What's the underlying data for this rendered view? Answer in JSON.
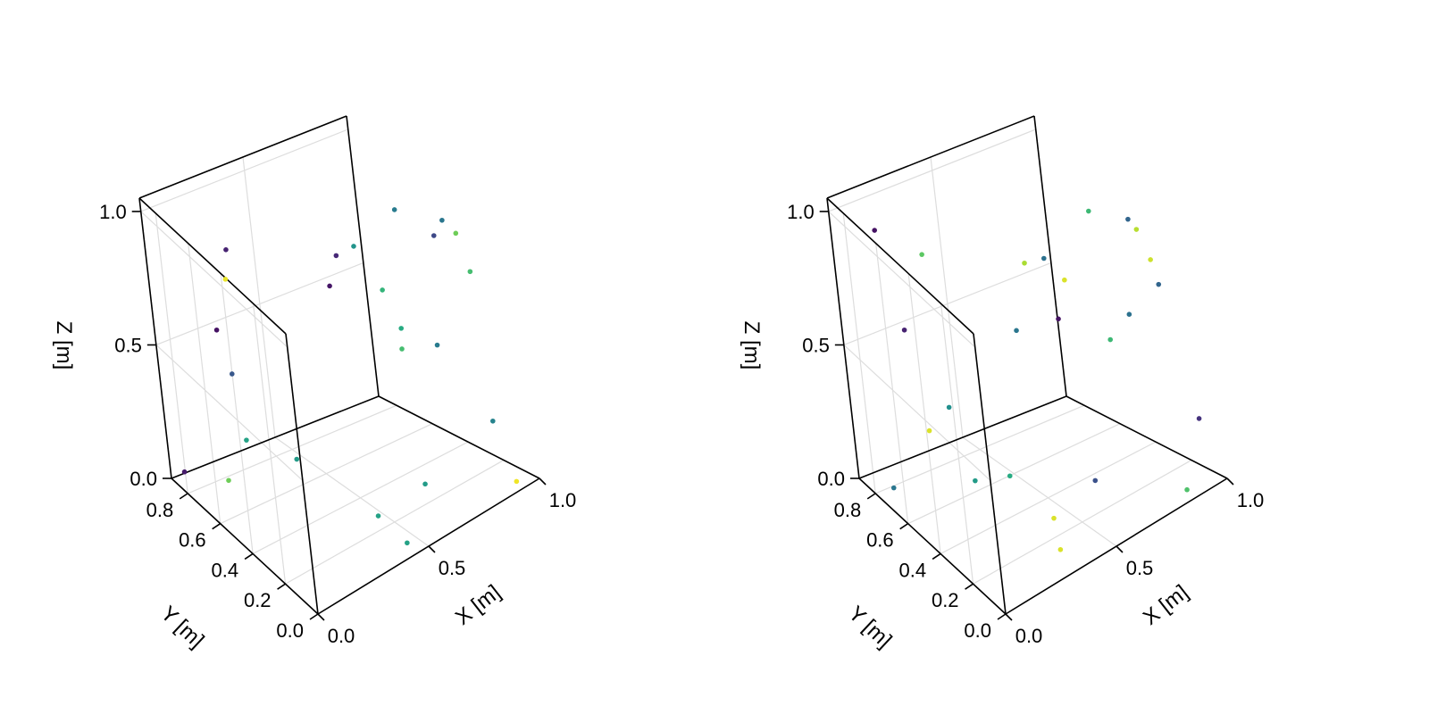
{
  "chart_data": [
    {
      "type": "scatter3d",
      "title": "",
      "xlabel": "X [m]",
      "ylabel": "Y [m]",
      "zlabel": "Z [m]",
      "xlim": [
        0.0,
        1.0
      ],
      "ylim": [
        0.0,
        0.9
      ],
      "zlim": [
        0.0,
        1.05
      ],
      "xticks": [
        "0.0",
        "0.5",
        "1.0"
      ],
      "yticks": [
        "0.0",
        "0.2",
        "0.4",
        "0.6",
        "0.8"
      ],
      "zticks": [
        "0.0",
        "0.5",
        "1.0"
      ],
      "grid": true,
      "colormap": "viridis",
      "points": [
        {
          "x": 0.05,
          "y": 0.45,
          "z": 0.98,
          "c": 0.97
        },
        {
          "x": 0.24,
          "y": 0.71,
          "z": 0.88,
          "c": 0.1
        },
        {
          "x": 0.07,
          "y": 0.58,
          "z": 0.71,
          "c": 0.05
        },
        {
          "x": 0.21,
          "y": 0.72,
          "z": 0.42,
          "c": 0.28
        },
        {
          "x": 0.12,
          "y": 0.54,
          "z": 0.3,
          "c": 0.58
        },
        {
          "x": 0.26,
          "y": 0.43,
          "z": 0.23,
          "c": 0.55
        },
        {
          "x": 0.86,
          "y": 0.21,
          "z": 0.96,
          "c": 0.4
        },
        {
          "x": 0.86,
          "y": 0.27,
          "z": 0.88,
          "c": 0.22
        },
        {
          "x": 0.82,
          "y": 0.71,
          "z": 0.69,
          "c": 0.52
        },
        {
          "x": 0.72,
          "y": 0.75,
          "z": 0.56,
          "c": 0.06
        },
        {
          "x": 0.98,
          "y": 0.49,
          "z": 0.34,
          "c": 0.42
        },
        {
          "x": 0.78,
          "y": 0.38,
          "z": 0.97,
          "c": 0.42
        },
        {
          "x": 0.92,
          "y": 0.22,
          "z": 0.88,
          "c": 0.78
        },
        {
          "x": 0.97,
          "y": 0.23,
          "z": 0.71,
          "c": 0.7
        },
        {
          "x": 0.81,
          "y": 0.81,
          "z": 0.62,
          "c": 0.12
        },
        {
          "x": 0.95,
          "y": 0.74,
          "z": 0.47,
          "c": 0.66
        },
        {
          "x": 0.8,
          "y": 0.45,
          "z": 0.49,
          "c": 0.62
        },
        {
          "x": 0.91,
          "y": 0.61,
          "z": 0.31,
          "c": 0.7
        },
        {
          "x": 0.88,
          "y": 0.07,
          "z": 0.25,
          "c": 0.45
        },
        {
          "x": 0.93,
          "y": 0.04,
          "z": 0.01,
          "c": 0.98
        },
        {
          "x": 0.72,
          "y": 0.3,
          "z": 0.0,
          "c": 0.55
        },
        {
          "x": 0.45,
          "y": 0.06,
          "z": 0.01,
          "c": 0.58
        },
        {
          "x": 0.48,
          "y": 0.27,
          "z": 0.0,
          "c": 0.58
        },
        {
          "x": 0.05,
          "y": 0.88,
          "z": 0.02,
          "c": 0.08
        },
        {
          "x": 0.18,
          "y": 0.78,
          "z": 0.0,
          "c": 0.78
        }
      ]
    },
    {
      "type": "scatter3d",
      "title": "",
      "xlabel": "X [m]",
      "ylabel": "Y [m]",
      "zlabel": "Z [m]",
      "xlim": [
        0.0,
        1.0
      ],
      "ylim": [
        0.0,
        0.9
      ],
      "zlim": [
        0.0,
        1.05
      ],
      "xticks": [
        "0.0",
        "0.5",
        "1.0"
      ],
      "yticks": [
        "0.0",
        "0.2",
        "0.4",
        "0.6",
        "0.8"
      ],
      "zticks": [
        "0.0",
        "0.5",
        "1.0"
      ],
      "grid": true,
      "colormap": "viridis",
      "points": [
        {
          "x": 0.1,
          "y": 0.75,
          "z": 0.98,
          "c": 0.05
        },
        {
          "x": 0.16,
          "y": 0.54,
          "z": 0.98,
          "c": 0.75
        },
        {
          "x": 0.07,
          "y": 0.58,
          "z": 0.71,
          "c": 0.1
        },
        {
          "x": 0.13,
          "y": 0.58,
          "z": 0.31,
          "c": 0.95
        },
        {
          "x": 0.17,
          "y": 0.49,
          "z": 0.43,
          "c": 0.5
        },
        {
          "x": 0.29,
          "y": 0.32,
          "z": 0.21,
          "c": 0.62
        },
        {
          "x": 0.86,
          "y": 0.22,
          "z": 0.96,
          "c": 0.33
        },
        {
          "x": 0.92,
          "y": 0.26,
          "z": 0.88,
          "c": 0.9
        },
        {
          "x": 0.72,
          "y": 0.69,
          "z": 0.67,
          "c": 0.88
        },
        {
          "x": 0.62,
          "y": 0.65,
          "z": 0.47,
          "c": 0.4
        },
        {
          "x": 0.97,
          "y": 0.56,
          "z": 0.34,
          "c": 0.68
        },
        {
          "x": 0.8,
          "y": 0.37,
          "z": 0.96,
          "c": 0.68
        },
        {
          "x": 0.93,
          "y": 0.21,
          "z": 0.78,
          "c": 0.93
        },
        {
          "x": 0.96,
          "y": 0.22,
          "z": 0.67,
          "c": 0.33
        },
        {
          "x": 0.84,
          "y": 0.73,
          "z": 0.63,
          "c": 0.38
        },
        {
          "x": 0.96,
          "y": 0.78,
          "z": 0.49,
          "c": 0.95
        },
        {
          "x": 0.97,
          "y": 0.43,
          "z": 0.48,
          "c": 0.38
        },
        {
          "x": 0.95,
          "y": 0.83,
          "z": 0.33,
          "c": 0.05
        },
        {
          "x": 0.96,
          "y": 0.07,
          "z": 0.22,
          "c": 0.15
        },
        {
          "x": 0.86,
          "y": 0.05,
          "z": 0.01,
          "c": 0.72
        },
        {
          "x": 0.68,
          "y": 0.35,
          "z": 0.01,
          "c": 0.25
        },
        {
          "x": 0.34,
          "y": 0.12,
          "z": 0.01,
          "c": 0.95
        },
        {
          "x": 0.44,
          "y": 0.29,
          "z": 0.0,
          "c": 0.95
        },
        {
          "x": 0.08,
          "y": 0.79,
          "z": 0.0,
          "c": 0.4
        },
        {
          "x": 0.35,
          "y": 0.64,
          "z": 0.01,
          "c": 0.55
        }
      ]
    }
  ]
}
